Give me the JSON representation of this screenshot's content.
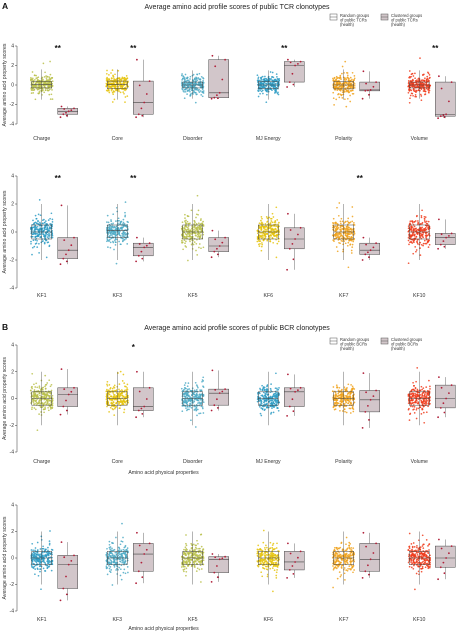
{
  "figure": {
    "panel_labels": [
      "A",
      "B"
    ],
    "title_a": "Average amino acid profile scores of public TCR clonotypes",
    "title_b": "Average amino acid profile scores of public BCR clonotypes",
    "ylabel": "Average amino acid property scores",
    "xlabel": "Amino acid physical properties",
    "legend_a": {
      "random": [
        "Random groups",
        "of public TCRs",
        "(health)"
      ],
      "clustered": [
        "Clustered groups",
        "of public TCRs",
        "(health)"
      ]
    },
    "legend_b": {
      "random": [
        "Random groups",
        "of public BCRs",
        "(health)"
      ],
      "clustered": [
        "Clustered groups",
        "of public BCRs",
        "(health)"
      ]
    },
    "colors": {
      "clustered_fill": "#d2c6ca",
      "clustered_point": "#b0203a",
      "random_point_olive": "#b9c04a",
      "random_point_gold": "#e5c30d",
      "random_point_teal": "#4eaac6",
      "random_point_blue": "#2e9cc4",
      "random_point_orange": "#f0a21c",
      "random_point_red": "#f03c1c"
    }
  },
  "chart_data": [
    {
      "type": "box+jitter",
      "title": "Average amino acid profile scores of public TCR clonotypes",
      "ylabel": "Average amino acid property scores",
      "xlabel": "",
      "ylim": [
        -4,
        4
      ],
      "yticks": [
        -4,
        -2,
        0,
        2,
        4
      ],
      "legend": "top-right",
      "series": [
        "Random groups of public TCRs (health)",
        "Clustered groups of public TCRs (health)"
      ],
      "groups": [
        {
          "category": "Charge",
          "color": "olive",
          "significance": "**",
          "random": {
            "q1": -0.3,
            "median": 0.05,
            "q3": 0.35,
            "min": -1.5,
            "max": 1.6
          },
          "clustered": {
            "q1": -3.0,
            "median": -2.7,
            "q3": -2.4,
            "min": -3.3,
            "max": -2.2
          }
        },
        {
          "category": "Core",
          "color": "gold",
          "significance": "**",
          "random": {
            "q1": -0.35,
            "median": 0.05,
            "q3": 0.4,
            "min": -1.5,
            "max": 1.6
          },
          "clustered": {
            "q1": -3.0,
            "median": -1.8,
            "q3": 0.4,
            "min": -3.3,
            "max": 2.6
          }
        },
        {
          "category": "Disorder",
          "color": "teal",
          "significance": "",
          "random": {
            "q1": -0.3,
            "median": 0.0,
            "q3": 0.3,
            "min": -1.4,
            "max": 1.5
          },
          "clustered": {
            "q1": -1.3,
            "median": -0.8,
            "q3": 2.6,
            "min": -1.4,
            "max": 3.0
          }
        },
        {
          "category": "MJ Energy",
          "color": "blue",
          "significance": "**",
          "random": {
            "q1": -0.35,
            "median": 0.0,
            "q3": 0.35,
            "min": -1.5,
            "max": 1.5
          },
          "clustered": {
            "q1": 0.3,
            "median": 2.0,
            "q3": 2.4,
            "min": -0.2,
            "max": 2.6
          }
        },
        {
          "category": "Polarity",
          "color": "orange",
          "significance": "",
          "random": {
            "q1": -0.4,
            "median": 0.0,
            "q3": 0.35,
            "min": -1.5,
            "max": 1.6
          },
          "clustered": {
            "q1": -0.6,
            "median": -0.5,
            "q3": 0.3,
            "min": -1.4,
            "max": 1.4
          }
        },
        {
          "category": "Volume",
          "color": "red",
          "significance": "**",
          "random": {
            "q1": -0.3,
            "median": 0.0,
            "q3": 0.3,
            "min": -1.4,
            "max": 1.5
          },
          "clustered": {
            "q1": -3.2,
            "median": -3.0,
            "q3": 0.3,
            "min": -3.4,
            "max": 0.9
          }
        }
      ]
    },
    {
      "type": "box+jitter",
      "title": "",
      "ylabel": "Average amino acid property scores",
      "xlabel": "",
      "ylim": [
        -4,
        4
      ],
      "yticks": [
        -4,
        -2,
        0,
        2,
        4
      ],
      "groups": [
        {
          "category": "KF1",
          "color": "blue",
          "significance": "**",
          "random": {
            "q1": -0.5,
            "median": 0.0,
            "q3": 0.5,
            "min": -2.0,
            "max": 2.0
          },
          "clustered": {
            "q1": -1.9,
            "median": -1.3,
            "q3": -0.4,
            "min": -2.3,
            "max": 1.9
          }
        },
        {
          "category": "KF3",
          "color": "teal",
          "significance": "**",
          "random": {
            "q1": -0.4,
            "median": 0.1,
            "q3": 0.5,
            "min": -2.0,
            "max": 2.0
          },
          "clustered": {
            "q1": -1.7,
            "median": -1.1,
            "q3": -0.8,
            "min": -2.1,
            "max": -0.4
          }
        },
        {
          "category": "KF5",
          "color": "olive",
          "significance": "",
          "random": {
            "q1": -0.5,
            "median": 0.0,
            "q3": 0.5,
            "min": -2.0,
            "max": 2.0
          },
          "clustered": {
            "q1": -1.4,
            "median": -1.0,
            "q3": -0.4,
            "min": -1.8,
            "max": 0.1
          }
        },
        {
          "category": "KF6",
          "color": "gold",
          "significance": "",
          "random": {
            "q1": -0.5,
            "median": 0.0,
            "q3": 0.5,
            "min": -2.0,
            "max": 2.0
          },
          "clustered": {
            "q1": -1.2,
            "median": -0.5,
            "q3": 0.3,
            "min": -2.7,
            "max": 1.3
          }
        },
        {
          "category": "KF7",
          "color": "orange",
          "significance": "**",
          "random": {
            "q1": -0.5,
            "median": 0.0,
            "q3": 0.5,
            "min": -2.0,
            "max": 2.0
          },
          "clustered": {
            "q1": -1.6,
            "median": -1.3,
            "q3": -0.8,
            "min": -2.0,
            "max": -0.4
          }
        },
        {
          "category": "KF10",
          "color": "red",
          "significance": "",
          "random": {
            "q1": -0.5,
            "median": 0.0,
            "q3": 0.5,
            "min": -2.0,
            "max": 2.0
          },
          "clustered": {
            "q1": -0.9,
            "median": -0.4,
            "q3": -0.1,
            "min": -1.2,
            "max": 0.9
          }
        }
      ]
    },
    {
      "type": "box+jitter",
      "title": "Average amino acid profile scores of public BCR clonotypes",
      "ylabel": "Average amino acid property scores",
      "xlabel": "Amino acid physical properties",
      "ylim": [
        -4,
        4
      ],
      "yticks": [
        -4,
        -2,
        0,
        2,
        4
      ],
      "legend": "top-right",
      "series": [
        "Random groups of public BCRs (health)",
        "Clustered groups of public BCRs (health)"
      ],
      "groups": [
        {
          "category": "Charge",
          "color": "olive",
          "significance": "",
          "random": {
            "q1": -0.5,
            "median": 0.0,
            "q3": 0.5,
            "min": -2.0,
            "max": 2.0
          },
          "clustered": {
            "q1": -0.6,
            "median": 0.3,
            "q3": 0.8,
            "min": -1.2,
            "max": 2.2
          }
        },
        {
          "category": "Core",
          "color": "gold",
          "significance": "*",
          "random": {
            "q1": -0.5,
            "median": 0.0,
            "q3": 0.5,
            "min": -2.0,
            "max": 2.0
          },
          "clustered": {
            "q1": -0.9,
            "median": -0.6,
            "q3": 0.8,
            "min": -1.4,
            "max": 2.0
          }
        },
        {
          "category": "Disorder",
          "color": "teal",
          "significance": "",
          "random": {
            "q1": -0.5,
            "median": 0.0,
            "q3": 0.5,
            "min": -2.0,
            "max": 2.0
          },
          "clustered": {
            "q1": -0.5,
            "median": 0.4,
            "q3": 0.7,
            "min": -0.9,
            "max": 2.1
          }
        },
        {
          "category": "MJ Energy",
          "color": "blue",
          "significance": "",
          "random": {
            "q1": -0.5,
            "median": 0.0,
            "q3": 0.5,
            "min": -2.0,
            "max": 2.0
          },
          "clustered": {
            "q1": -0.6,
            "median": 0.5,
            "q3": 0.8,
            "min": -1.3,
            "max": 1.8
          }
        },
        {
          "category": "Polarity",
          "color": "orange",
          "significance": "",
          "random": {
            "q1": -0.5,
            "median": 0.0,
            "q3": 0.5,
            "min": -2.0,
            "max": 2.0
          },
          "clustered": {
            "q1": -1.0,
            "median": -0.1,
            "q3": 0.6,
            "min": -2.2,
            "max": 1.9
          }
        },
        {
          "category": "Volume",
          "color": "red",
          "significance": "",
          "random": {
            "q1": -0.5,
            "median": 0.0,
            "q3": 0.5,
            "min": -2.0,
            "max": 2.0
          },
          "clustered": {
            "q1": -0.7,
            "median": 0.0,
            "q3": 1.0,
            "min": -1.4,
            "max": 1.6
          }
        }
      ]
    },
    {
      "type": "box+jitter",
      "title": "",
      "ylabel": "Average amino acid property scores",
      "xlabel": "Amino acid physical properties",
      "ylim": [
        -4,
        4
      ],
      "yticks": [
        -4,
        -2,
        0,
        2,
        4
      ],
      "groups": [
        {
          "category": "KF1",
          "color": "blue",
          "significance": "",
          "random": {
            "q1": -0.5,
            "median": 0.0,
            "q3": 0.5,
            "min": -2.0,
            "max": 2.0
          },
          "clustered": {
            "q1": -2.3,
            "median": -0.5,
            "q3": 0.2,
            "min": -3.2,
            "max": 1.2
          }
        },
        {
          "category": "KF3",
          "color": "teal",
          "significance": "",
          "random": {
            "q1": -0.5,
            "median": 0.0,
            "q3": 0.5,
            "min": -2.0,
            "max": 2.0
          },
          "clustered": {
            "q1": -1.0,
            "median": 0.3,
            "q3": 1.1,
            "min": -1.9,
            "max": 1.9
          }
        },
        {
          "category": "KF5",
          "color": "olive",
          "significance": "",
          "random": {
            "q1": -0.5,
            "median": 0.0,
            "q3": 0.5,
            "min": -2.0,
            "max": 2.0
          },
          "clustered": {
            "q1": -1.1,
            "median": -0.1,
            "q3": 0.1,
            "min": -1.8,
            "max": 0.3
          }
        },
        {
          "category": "KF6",
          "color": "gold",
          "significance": "",
          "random": {
            "q1": -0.5,
            "median": 0.0,
            "q3": 0.5,
            "min": -2.0,
            "max": 2.0
          },
          "clustered": {
            "q1": -0.9,
            "median": -0.3,
            "q3": 0.5,
            "min": -1.5,
            "max": 1.1
          }
        },
        {
          "category": "KF7",
          "color": "orange",
          "significance": "",
          "random": {
            "q1": -0.5,
            "median": 0.0,
            "q3": 0.5,
            "min": -2.0,
            "max": 2.0
          },
          "clustered": {
            "q1": -1.0,
            "median": -0.1,
            "q3": 1.1,
            "min": -1.5,
            "max": 1.9
          }
        },
        {
          "category": "KF10",
          "color": "red",
          "significance": "",
          "random": {
            "q1": -0.5,
            "median": 0.0,
            "q3": 0.5,
            "min": -2.0,
            "max": 2.0
          },
          "clustered": {
            "q1": -0.7,
            "median": 0.0,
            "q3": 0.9,
            "min": -1.6,
            "max": 1.4
          }
        }
      ]
    }
  ]
}
